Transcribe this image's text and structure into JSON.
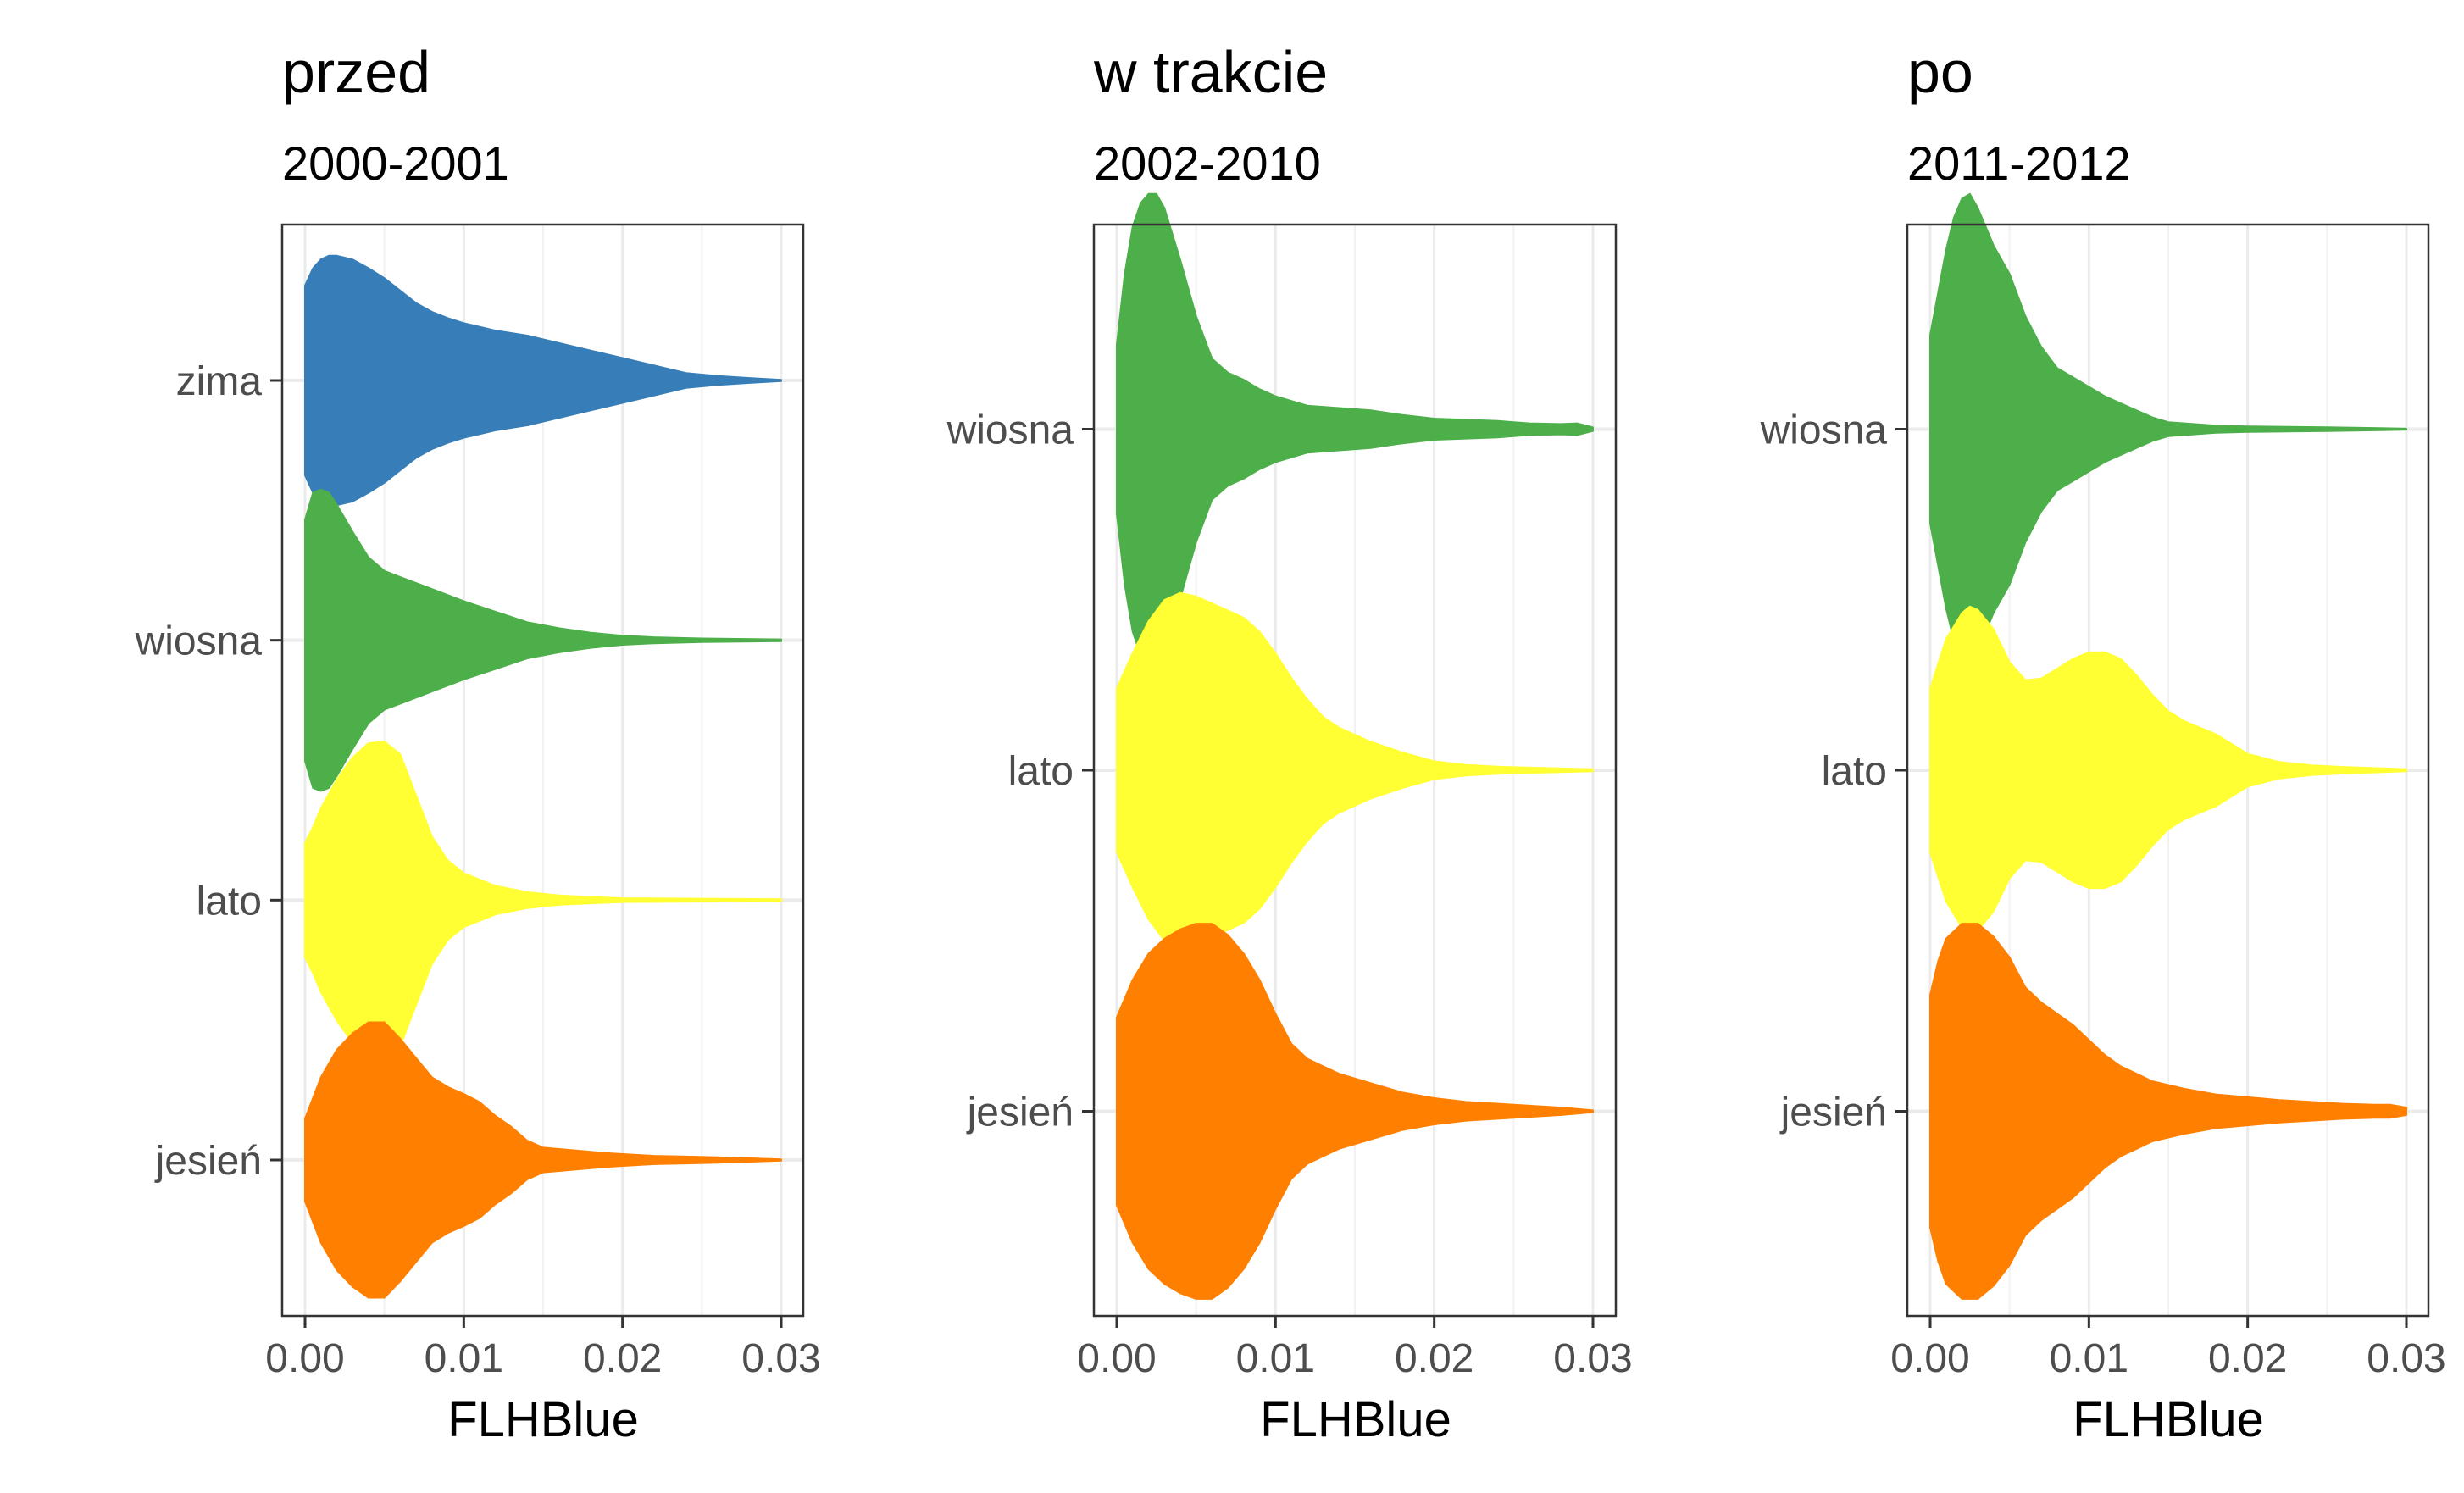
{
  "chart_data": [
    {
      "type": "violin",
      "title": "przed",
      "subtitle": "2000-2001",
      "xlabel": "FLHBlue",
      "ylabel": "",
      "xlim": [
        0,
        0.03
      ],
      "xticks": [
        0.0,
        0.01,
        0.02,
        0.03
      ],
      "xtick_labels": [
        "0.00",
        "0.01",
        "0.02",
        "0.03"
      ],
      "grid": true,
      "categories": [
        "zima",
        "wiosna",
        "lato",
        "jesień"
      ],
      "series": [
        {
          "category": "zima",
          "color": "#377eb8",
          "max_width": 0.96,
          "profile": [
            [
              0,
              0.76
            ],
            [
              0.0005,
              0.9
            ],
            [
              0.001,
              0.97
            ],
            [
              0.0015,
              1.0
            ],
            [
              0.002,
              1.0
            ],
            [
              0.003,
              0.97
            ],
            [
              0.004,
              0.9
            ],
            [
              0.005,
              0.82
            ],
            [
              0.006,
              0.72
            ],
            [
              0.007,
              0.62
            ],
            [
              0.008,
              0.55
            ],
            [
              0.009,
              0.5
            ],
            [
              0.01,
              0.46
            ],
            [
              0.011,
              0.43
            ],
            [
              0.012,
              0.4
            ],
            [
              0.014,
              0.36
            ],
            [
              0.016,
              0.3
            ],
            [
              0.018,
              0.24
            ],
            [
              0.02,
              0.18
            ],
            [
              0.022,
              0.12
            ],
            [
              0.024,
              0.06
            ],
            [
              0.026,
              0.035
            ],
            [
              0.028,
              0.02
            ],
            [
              0.03,
              0.005
            ]
          ]
        },
        {
          "category": "wiosna",
          "color": "#4daf4a",
          "max_width": 1.16,
          "profile": [
            [
              0,
              0.8
            ],
            [
              0.0005,
              0.98
            ],
            [
              0.001,
              1.0
            ],
            [
              0.0015,
              0.98
            ],
            [
              0.002,
              0.9
            ],
            [
              0.003,
              0.72
            ],
            [
              0.004,
              0.55
            ],
            [
              0.005,
              0.46
            ],
            [
              0.006,
              0.42
            ],
            [
              0.008,
              0.34
            ],
            [
              0.01,
              0.26
            ],
            [
              0.012,
              0.19
            ],
            [
              0.014,
              0.12
            ],
            [
              0.016,
              0.08
            ],
            [
              0.018,
              0.05
            ],
            [
              0.02,
              0.03
            ],
            [
              0.022,
              0.02
            ],
            [
              0.025,
              0.012
            ],
            [
              0.03,
              0.006
            ]
          ]
        },
        {
          "category": "lato",
          "color": "#ffff33",
          "max_width": 1.22,
          "profile": [
            [
              0,
              0.36
            ],
            [
              0.0005,
              0.46
            ],
            [
              0.001,
              0.58
            ],
            [
              0.002,
              0.76
            ],
            [
              0.003,
              0.9
            ],
            [
              0.004,
              0.99
            ],
            [
              0.005,
              1.0
            ],
            [
              0.006,
              0.92
            ],
            [
              0.007,
              0.66
            ],
            [
              0.008,
              0.4
            ],
            [
              0.009,
              0.25
            ],
            [
              0.01,
              0.17
            ],
            [
              0.012,
              0.09
            ],
            [
              0.014,
              0.05
            ],
            [
              0.016,
              0.03
            ],
            [
              0.018,
              0.02
            ],
            [
              0.02,
              0.012
            ],
            [
              0.03,
              0.006
            ]
          ]
        },
        {
          "category": "jesień",
          "color": "#ff7f00",
          "max_width": 1.06,
          "profile": [
            [
              0,
              0.3
            ],
            [
              0.001,
              0.6
            ],
            [
              0.002,
              0.8
            ],
            [
              0.003,
              0.92
            ],
            [
              0.004,
              1.0
            ],
            [
              0.005,
              1.0
            ],
            [
              0.006,
              0.88
            ],
            [
              0.007,
              0.74
            ],
            [
              0.008,
              0.6
            ],
            [
              0.009,
              0.53
            ],
            [
              0.01,
              0.48
            ],
            [
              0.011,
              0.42
            ],
            [
              0.012,
              0.32
            ],
            [
              0.013,
              0.24
            ],
            [
              0.014,
              0.14
            ],
            [
              0.015,
              0.09
            ],
            [
              0.017,
              0.07
            ],
            [
              0.019,
              0.05
            ],
            [
              0.022,
              0.03
            ],
            [
              0.024,
              0.025
            ],
            [
              0.026,
              0.02
            ],
            [
              0.028,
              0.012
            ],
            [
              0.03,
              0.005
            ]
          ]
        }
      ]
    },
    {
      "type": "violin",
      "title": "w trakcie",
      "subtitle": "2002-2010",
      "xlabel": "FLHBlue",
      "ylabel": "",
      "xlim": [
        0,
        0.03
      ],
      "xticks": [
        0.0,
        0.01,
        0.02,
        0.03
      ],
      "xtick_labels": [
        "0.00",
        "0.01",
        "0.02",
        "0.03"
      ],
      "grid": true,
      "categories": [
        "wiosna",
        "lato",
        "jesień"
      ],
      "series": [
        {
          "category": "wiosna",
          "color": "#4daf4a",
          "max_width": 1.38,
          "profile": [
            [
              0,
              0.36
            ],
            [
              0.0005,
              0.66
            ],
            [
              0.001,
              0.86
            ],
            [
              0.0015,
              0.96
            ],
            [
              0.002,
              1.0
            ],
            [
              0.0025,
              1.0
            ],
            [
              0.003,
              0.94
            ],
            [
              0.004,
              0.72
            ],
            [
              0.005,
              0.48
            ],
            [
              0.006,
              0.3
            ],
            [
              0.007,
              0.24
            ],
            [
              0.008,
              0.21
            ],
            [
              0.009,
              0.17
            ],
            [
              0.01,
              0.14
            ],
            [
              0.011,
              0.12
            ],
            [
              0.012,
              0.1
            ],
            [
              0.014,
              0.09
            ],
            [
              0.016,
              0.08
            ],
            [
              0.018,
              0.06
            ],
            [
              0.02,
              0.045
            ],
            [
              0.022,
              0.04
            ],
            [
              0.024,
              0.035
            ],
            [
              0.026,
              0.025
            ],
            [
              0.028,
              0.022
            ],
            [
              0.029,
              0.025
            ],
            [
              0.03,
              0.008
            ]
          ]
        },
        {
          "category": "lato",
          "color": "#ffff33",
          "max_width": 1.04,
          "profile": [
            [
              0,
              0.46
            ],
            [
              0.001,
              0.66
            ],
            [
              0.002,
              0.84
            ],
            [
              0.003,
              0.96
            ],
            [
              0.004,
              1.0
            ],
            [
              0.005,
              0.98
            ],
            [
              0.006,
              0.94
            ],
            [
              0.007,
              0.9
            ],
            [
              0.008,
              0.86
            ],
            [
              0.009,
              0.78
            ],
            [
              0.01,
              0.66
            ],
            [
              0.011,
              0.52
            ],
            [
              0.012,
              0.4
            ],
            [
              0.013,
              0.3
            ],
            [
              0.014,
              0.24
            ],
            [
              0.016,
              0.16
            ],
            [
              0.018,
              0.1
            ],
            [
              0.02,
              0.05
            ],
            [
              0.022,
              0.03
            ],
            [
              0.024,
              0.02
            ],
            [
              0.026,
              0.015
            ],
            [
              0.03,
              0.006
            ]
          ]
        },
        {
          "category": "jesień",
          "color": "#ff7f00",
          "max_width": 1.1,
          "profile": [
            [
              0,
              0.5
            ],
            [
              0.001,
              0.7
            ],
            [
              0.002,
              0.84
            ],
            [
              0.003,
              0.92
            ],
            [
              0.004,
              0.97
            ],
            [
              0.005,
              1.0
            ],
            [
              0.006,
              1.0
            ],
            [
              0.007,
              0.94
            ],
            [
              0.008,
              0.84
            ],
            [
              0.009,
              0.7
            ],
            [
              0.01,
              0.52
            ],
            [
              0.011,
              0.36
            ],
            [
              0.012,
              0.28
            ],
            [
              0.013,
              0.24
            ],
            [
              0.014,
              0.2
            ],
            [
              0.016,
              0.15
            ],
            [
              0.018,
              0.1
            ],
            [
              0.02,
              0.07
            ],
            [
              0.022,
              0.05
            ],
            [
              0.024,
              0.04
            ],
            [
              0.026,
              0.03
            ],
            [
              0.028,
              0.02
            ],
            [
              0.03,
              0.005
            ]
          ]
        }
      ]
    },
    {
      "type": "violin",
      "title": "po",
      "subtitle": "2011-2012",
      "xlabel": "FLHBlue",
      "ylabel": "",
      "xlim": [
        0,
        0.03
      ],
      "xticks": [
        0.0,
        0.01,
        0.02,
        0.03
      ],
      "xtick_labels": [
        "0.00",
        "0.01",
        "0.02",
        "0.03"
      ],
      "grid": true,
      "categories": [
        "wiosna",
        "lato",
        "jesień"
      ],
      "series": [
        {
          "category": "wiosna",
          "color": "#4daf4a",
          "max_width": 1.38,
          "profile": [
            [
              0,
              0.4
            ],
            [
              0.001,
              0.76
            ],
            [
              0.0015,
              0.9
            ],
            [
              0.002,
              0.98
            ],
            [
              0.0025,
              1.0
            ],
            [
              0.003,
              0.94
            ],
            [
              0.004,
              0.78
            ],
            [
              0.005,
              0.66
            ],
            [
              0.006,
              0.48
            ],
            [
              0.007,
              0.35
            ],
            [
              0.008,
              0.26
            ],
            [
              0.009,
              0.22
            ],
            [
              0.01,
              0.18
            ],
            [
              0.011,
              0.14
            ],
            [
              0.012,
              0.11
            ],
            [
              0.013,
              0.08
            ],
            [
              0.014,
              0.05
            ],
            [
              0.015,
              0.03
            ],
            [
              0.018,
              0.015
            ],
            [
              0.02,
              0.012
            ],
            [
              0.025,
              0.008
            ],
            [
              0.028,
              0.005
            ],
            [
              0.03,
              0.002
            ]
          ]
        },
        {
          "category": "lato",
          "color": "#ffff33",
          "max_width": 0.96,
          "profile": [
            [
              0,
              0.5
            ],
            [
              0.001,
              0.8
            ],
            [
              0.002,
              0.96
            ],
            [
              0.0025,
              1.0
            ],
            [
              0.003,
              0.98
            ],
            [
              0.004,
              0.86
            ],
            [
              0.005,
              0.66
            ],
            [
              0.006,
              0.55
            ],
            [
              0.007,
              0.56
            ],
            [
              0.008,
              0.62
            ],
            [
              0.009,
              0.68
            ],
            [
              0.01,
              0.72
            ],
            [
              0.011,
              0.72
            ],
            [
              0.012,
              0.68
            ],
            [
              0.013,
              0.58
            ],
            [
              0.014,
              0.46
            ],
            [
              0.015,
              0.36
            ],
            [
              0.016,
              0.3
            ],
            [
              0.018,
              0.22
            ],
            [
              0.019,
              0.16
            ],
            [
              0.02,
              0.1
            ],
            [
              0.022,
              0.05
            ],
            [
              0.024,
              0.03
            ],
            [
              0.026,
              0.02
            ],
            [
              0.03,
              0.006
            ]
          ]
        },
        {
          "category": "jesień",
          "color": "#ff7f00",
          "max_width": 1.1,
          "profile": [
            [
              0,
              0.62
            ],
            [
              0.0005,
              0.8
            ],
            [
              0.001,
              0.92
            ],
            [
              0.002,
              1.0
            ],
            [
              0.003,
              1.0
            ],
            [
              0.004,
              0.93
            ],
            [
              0.005,
              0.82
            ],
            [
              0.006,
              0.66
            ],
            [
              0.007,
              0.58
            ],
            [
              0.008,
              0.52
            ],
            [
              0.009,
              0.46
            ],
            [
              0.01,
              0.38
            ],
            [
              0.011,
              0.3
            ],
            [
              0.012,
              0.24
            ],
            [
              0.013,
              0.2
            ],
            [
              0.014,
              0.16
            ],
            [
              0.016,
              0.12
            ],
            [
              0.018,
              0.09
            ],
            [
              0.02,
              0.075
            ],
            [
              0.022,
              0.06
            ],
            [
              0.024,
              0.05
            ],
            [
              0.026,
              0.04
            ],
            [
              0.028,
              0.035
            ],
            [
              0.029,
              0.035
            ],
            [
              0.03,
              0.02
            ]
          ]
        }
      ]
    }
  ]
}
